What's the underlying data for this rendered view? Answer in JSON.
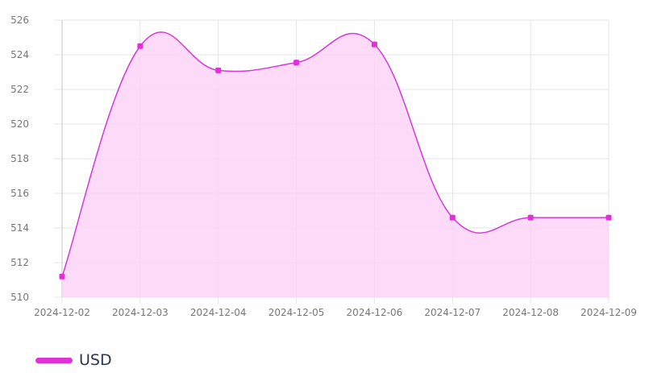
{
  "chart_data": {
    "type": "area",
    "title": "",
    "xlabel": "",
    "ylabel": "",
    "categories": [
      "2024-12-02",
      "2024-12-03",
      "2024-12-04",
      "2024-12-05",
      "2024-12-06",
      "2024-12-07",
      "2024-12-08",
      "2024-12-09"
    ],
    "series": [
      {
        "name": "USD",
        "values": [
          511.2,
          524.5,
          523.1,
          523.55,
          524.6,
          514.6,
          514.6,
          514.6
        ]
      }
    ],
    "ylim": [
      510,
      526
    ],
    "yticks": [
      510,
      512,
      514,
      516,
      518,
      520,
      522,
      524,
      526
    ],
    "grid": true,
    "smooth": true,
    "legend_position": "bottom-left",
    "colors": {
      "line": "#d63ad6",
      "fill": "#fcd4f7",
      "point": "#e030d8",
      "grid": "#e4e4e8"
    }
  }
}
